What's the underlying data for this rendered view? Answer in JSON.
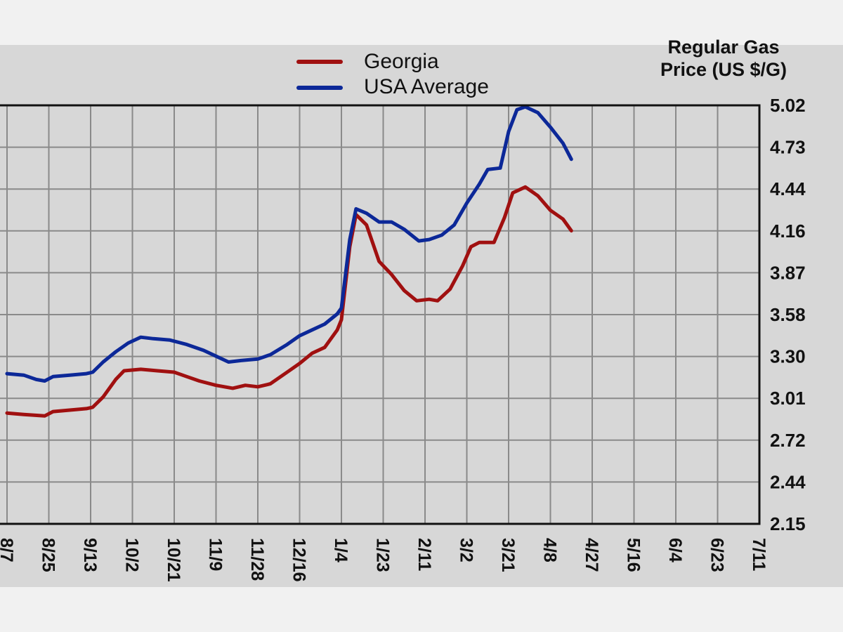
{
  "chart_data": {
    "type": "line",
    "ylabel": "Regular Gas Price (US $/G)",
    "y_ticks": [
      "5.02",
      "4.73",
      "4.44",
      "4.16",
      "3.87",
      "3.58",
      "3.30",
      "3.01",
      "2.72",
      "2.44",
      "2.15"
    ],
    "ylim": [
      2.15,
      5.02
    ],
    "x_ticks": [
      "8/7",
      "8/25",
      "9/13",
      "10/2",
      "10/21",
      "11/9",
      "11/28",
      "12/16",
      "1/4",
      "1/23",
      "2/11",
      "3/2",
      "3/21",
      "4/8",
      "4/27",
      "5/16",
      "6/4",
      "6/23",
      "7/11"
    ],
    "grid": true,
    "legend_position": "top",
    "series": [
      {
        "name": "Georgia",
        "color": "#a01010",
        "points": [
          [
            0,
            2.91
          ],
          [
            0.4,
            2.9
          ],
          [
            0.9,
            2.89
          ],
          [
            1.1,
            2.92
          ],
          [
            1.5,
            2.93
          ],
          [
            1.9,
            2.94
          ],
          [
            2.05,
            2.95
          ],
          [
            2.3,
            3.02
          ],
          [
            2.6,
            3.14
          ],
          [
            2.8,
            3.2
          ],
          [
            3.2,
            3.21
          ],
          [
            3.6,
            3.2
          ],
          [
            4.0,
            3.19
          ],
          [
            4.3,
            3.16
          ],
          [
            4.6,
            3.13
          ],
          [
            5.0,
            3.1
          ],
          [
            5.4,
            3.08
          ],
          [
            5.7,
            3.1
          ],
          [
            6.0,
            3.09
          ],
          [
            6.3,
            3.11
          ],
          [
            6.7,
            3.19
          ],
          [
            7.0,
            3.25
          ],
          [
            7.3,
            3.32
          ],
          [
            7.6,
            3.36
          ],
          [
            7.9,
            3.48
          ],
          [
            8.0,
            3.55
          ],
          [
            8.2,
            4.05
          ],
          [
            8.35,
            4.27
          ],
          [
            8.6,
            4.2
          ],
          [
            8.9,
            3.95
          ],
          [
            9.2,
            3.86
          ],
          [
            9.5,
            3.75
          ],
          [
            9.8,
            3.68
          ],
          [
            10.1,
            3.69
          ],
          [
            10.3,
            3.68
          ],
          [
            10.6,
            3.76
          ],
          [
            10.9,
            3.92
          ],
          [
            11.1,
            4.05
          ],
          [
            11.3,
            4.08
          ],
          [
            11.65,
            4.08
          ],
          [
            11.9,
            4.25
          ],
          [
            12.1,
            4.42
          ],
          [
            12.4,
            4.46
          ],
          [
            12.7,
            4.4
          ],
          [
            13.0,
            4.3
          ],
          [
            13.3,
            4.24
          ],
          [
            13.5,
            4.16
          ]
        ]
      },
      {
        "name": "USA Average",
        "color": "#0c2898",
        "points": [
          [
            0,
            3.18
          ],
          [
            0.4,
            3.17
          ],
          [
            0.7,
            3.14
          ],
          [
            0.9,
            3.13
          ],
          [
            1.1,
            3.16
          ],
          [
            1.5,
            3.17
          ],
          [
            1.9,
            3.18
          ],
          [
            2.05,
            3.19
          ],
          [
            2.3,
            3.26
          ],
          [
            2.6,
            3.33
          ],
          [
            2.9,
            3.39
          ],
          [
            3.2,
            3.43
          ],
          [
            3.5,
            3.42
          ],
          [
            3.9,
            3.41
          ],
          [
            4.3,
            3.38
          ],
          [
            4.7,
            3.34
          ],
          [
            5.0,
            3.3
          ],
          [
            5.3,
            3.26
          ],
          [
            5.6,
            3.27
          ],
          [
            6.0,
            3.28
          ],
          [
            6.3,
            3.31
          ],
          [
            6.7,
            3.38
          ],
          [
            7.0,
            3.44
          ],
          [
            7.3,
            3.48
          ],
          [
            7.6,
            3.52
          ],
          [
            7.9,
            3.59
          ],
          [
            8.0,
            3.63
          ],
          [
            8.2,
            4.1
          ],
          [
            8.35,
            4.31
          ],
          [
            8.6,
            4.28
          ],
          [
            8.9,
            4.22
          ],
          [
            9.2,
            4.22
          ],
          [
            9.5,
            4.17
          ],
          [
            9.85,
            4.09
          ],
          [
            10.1,
            4.1
          ],
          [
            10.4,
            4.13
          ],
          [
            10.7,
            4.2
          ],
          [
            11.0,
            4.35
          ],
          [
            11.3,
            4.48
          ],
          [
            11.5,
            4.58
          ],
          [
            11.8,
            4.59
          ],
          [
            12.0,
            4.84
          ],
          [
            12.2,
            4.99
          ],
          [
            12.4,
            5.01
          ],
          [
            12.7,
            4.97
          ],
          [
            13.0,
            4.87
          ],
          [
            13.3,
            4.76
          ],
          [
            13.5,
            4.65
          ]
        ]
      }
    ]
  }
}
